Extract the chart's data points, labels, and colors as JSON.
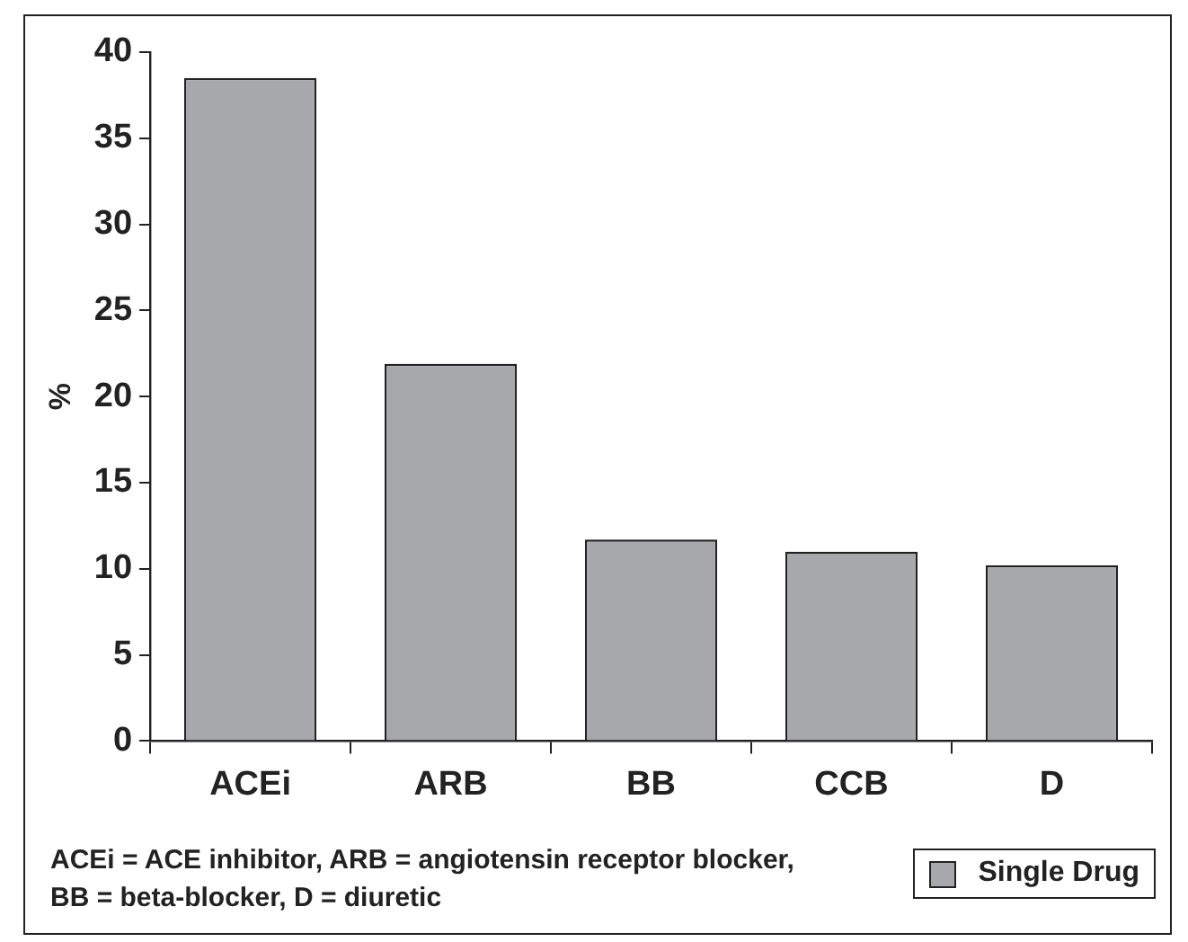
{
  "chart_data": {
    "type": "bar",
    "categories": [
      "ACEi",
      "ARB",
      "BB",
      "CCB",
      "D"
    ],
    "series": [
      {
        "name": "Single Drug",
        "color": "#a7a8ab",
        "values": [
          38.5,
          21.9,
          11.7,
          11.0,
          10.2
        ]
      }
    ],
    "ylabel": "%",
    "ylim": [
      0,
      40
    ],
    "yticks": [
      0,
      5,
      10,
      15,
      20,
      25,
      30,
      35,
      40
    ],
    "grid": false,
    "legend": "bottom right",
    "annotations": [
      "ACEi = ACE inhibitor, ARB = angiotensin receptor blocker, BB = beta-blocker, D = diuretic"
    ]
  }
}
